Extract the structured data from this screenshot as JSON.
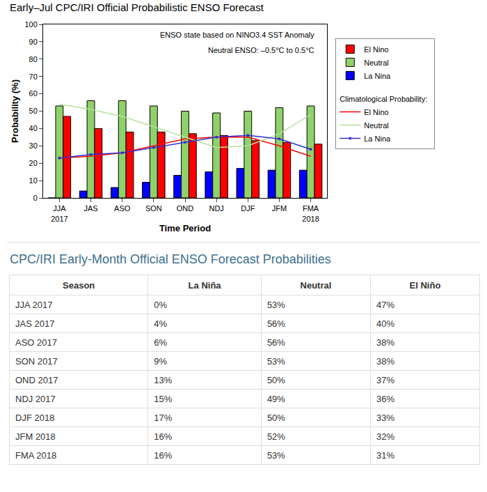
{
  "chart_data": {
    "type": "bar",
    "title": "Early–Jul CPC/IRI Official Probabilistic ENSO Forecast",
    "x_label": "Time Period",
    "y_label": "Probability (%)",
    "annotations": [
      "ENSO state based on NINO3.4 SST Anomaly",
      "Neutral ENSO: –0.5°C to 0.5°C"
    ],
    "categories": [
      "JJA\n2017",
      "JAS",
      "ASO",
      "SON",
      "OND",
      "NDJ",
      "DJF",
      "JFM",
      "FMA\n2018"
    ],
    "series": [
      {
        "name": "La Nina",
        "color": "#0000ff",
        "values": [
          0,
          4,
          6,
          9,
          13,
          15,
          17,
          16,
          16
        ]
      },
      {
        "name": "Neutral",
        "color": "#8fd16a",
        "values": [
          53,
          56,
          56,
          53,
          50,
          49,
          50,
          52,
          53
        ]
      },
      {
        "name": "El Nino",
        "color": "#ff0000",
        "values": [
          47,
          40,
          38,
          38,
          37,
          36,
          33,
          32,
          31
        ]
      },
      {
        "name": "El Nino",
        "type": "line",
        "color": "#ff0000",
        "marker": "none",
        "values": [
          23,
          24,
          26,
          30,
          34,
          35,
          35,
          30,
          24
        ]
      },
      {
        "name": "Neutral",
        "type": "line",
        "color": "#b5e29c",
        "marker": "none",
        "values": [
          54,
          51,
          47,
          41,
          35,
          29,
          30,
          37,
          48
        ]
      },
      {
        "name": "La Nina",
        "type": "line",
        "color": "#3030d0",
        "marker": "circle",
        "values": [
          23,
          25,
          26,
          29,
          32,
          35,
          36,
          34,
          28
        ]
      }
    ],
    "climatology_title": "Climatological Probability:",
    "ylim": [
      0,
      100
    ],
    "yticks": [
      0,
      10,
      20,
      30,
      40,
      50,
      60,
      70,
      80,
      90,
      100
    ],
    "grid": false,
    "legend": "right"
  },
  "table_title": "CPC/IRI Early-Month Official ENSO Forecast Probabilities",
  "table": {
    "header": [
      "Season",
      "La Niña",
      "Neutral",
      "El Niño"
    ],
    "rows": [
      [
        "JJA 2017",
        "0%",
        "53%",
        "47%"
      ],
      [
        "JAS 2017",
        "4%",
        "56%",
        "40%"
      ],
      [
        "ASO 2017",
        "6%",
        "56%",
        "38%"
      ],
      [
        "SON 2017",
        "9%",
        "53%",
        "38%"
      ],
      [
        "OND 2017",
        "13%",
        "50%",
        "37%"
      ],
      [
        "NDJ 2017",
        "15%",
        "49%",
        "36%"
      ],
      [
        "DJF 2018",
        "17%",
        "50%",
        "33%"
      ],
      [
        "JFM 2018",
        "16%",
        "52%",
        "32%"
      ],
      [
        "FMA 2018",
        "16%",
        "53%",
        "31%"
      ]
    ]
  }
}
